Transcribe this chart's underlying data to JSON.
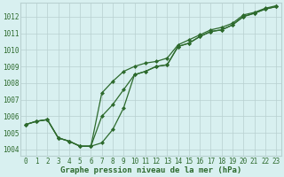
{
  "hours": [
    0,
    1,
    2,
    3,
    4,
    5,
    6,
    7,
    8,
    9,
    10,
    11,
    12,
    13,
    14,
    15,
    16,
    17,
    18,
    19,
    20,
    21,
    22,
    23
  ],
  "s_low": [
    1005.5,
    1005.7,
    1005.8,
    1004.7,
    1004.5,
    1004.2,
    1004.2,
    1004.4,
    1005.2,
    1006.5,
    1008.5,
    1008.7,
    1009.0,
    1009.1,
    1010.2,
    1010.4,
    1010.8,
    1011.1,
    1011.2,
    1011.5,
    1012.0,
    1012.2,
    1012.45,
    1012.6
  ],
  "s_high": [
    1005.5,
    1005.7,
    1005.8,
    1004.7,
    1004.5,
    1004.2,
    1004.2,
    1007.4,
    1008.1,
    1008.7,
    1009.0,
    1009.2,
    1009.3,
    1009.5,
    1010.3,
    1010.6,
    1010.9,
    1011.2,
    1011.35,
    1011.6,
    1012.1,
    1012.25,
    1012.5,
    1012.65
  ],
  "s_mid": [
    1005.5,
    1005.7,
    1005.8,
    1004.7,
    1004.5,
    1004.2,
    1004.2,
    1006.0,
    1006.7,
    1007.6,
    1008.5,
    1008.7,
    1009.0,
    1009.1,
    1010.2,
    1010.4,
    1010.8,
    1011.1,
    1011.2,
    1011.5,
    1012.0,
    1012.2,
    1012.45,
    1012.6
  ],
  "line_color": "#2d6a2d",
  "bg_color": "#d8f0f0",
  "grid_color": "#b8d0d0",
  "xlabel_label": "Graphe pression niveau de la mer (hPa)",
  "ylim": [
    1003.6,
    1012.85
  ],
  "yticks": [
    1004,
    1005,
    1006,
    1007,
    1008,
    1009,
    1010,
    1011,
    1012
  ],
  "xlim": [
    -0.5,
    23.5
  ],
  "marker": "D",
  "marker_size": 2.0,
  "line_width": 0.9,
  "tick_fontsize": 5.5,
  "xlabel_fontsize": 6.5
}
